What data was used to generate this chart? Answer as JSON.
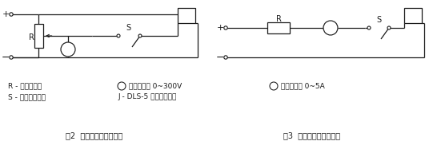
{
  "bg_color": "#ffffff",
  "line_color": "#1a1a1a",
  "fig_width": 5.36,
  "fig_height": 1.82,
  "dpi": 100,
  "legend_line1": "R - 滑线电阻器",
  "legend_line2": "S - 单刀单掷开关",
  "legend_mid1": " 直流电压表 0~300V",
  "legend_mid2": "J - DLS-5 双位置继电器",
  "legend_right1": " 直流电流表 0~5A",
  "caption_left": "图2  动作电压检验线路图",
  "caption_right": "图3  动作电流检验线路图"
}
